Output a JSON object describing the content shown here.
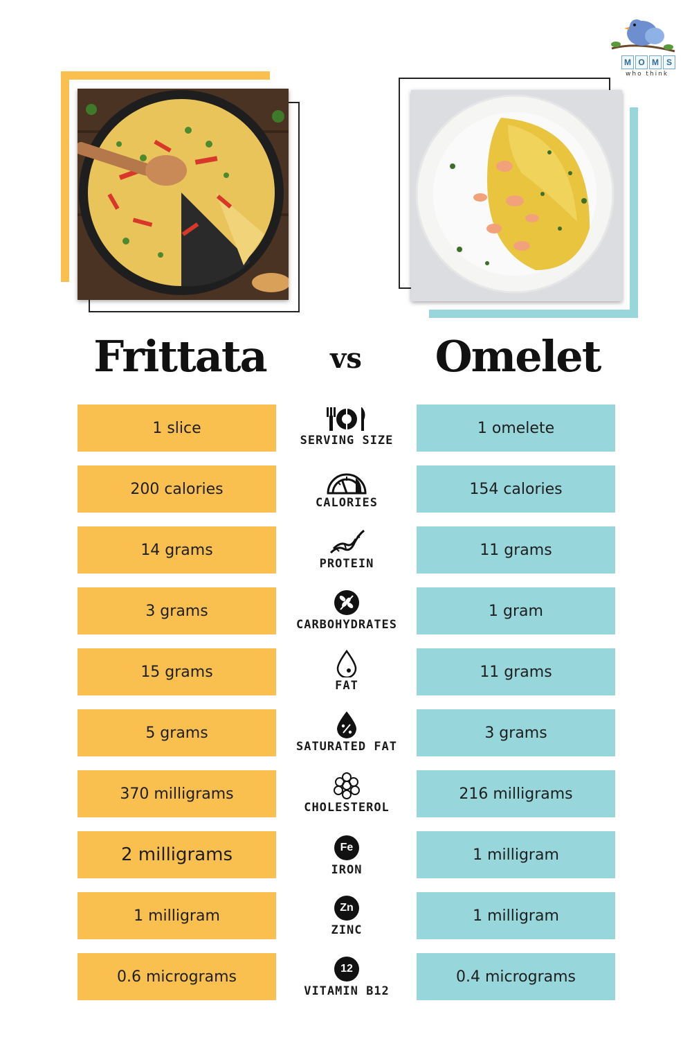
{
  "logo": {
    "letters": [
      "M",
      "O",
      "M",
      "S"
    ],
    "sub": "who think"
  },
  "titles": {
    "left": "Frittata",
    "vs": "vs",
    "right": "Omelet"
  },
  "rows": [
    {
      "label": "SERVING SIZE",
      "icon": "utensils-plate-icon",
      "left": "1 slice",
      "right": "1 omelete"
    },
    {
      "label": "CALORIES",
      "icon": "gauge-icon",
      "left": "200 calories",
      "right": "154 calories"
    },
    {
      "label": "PROTEIN",
      "icon": "protein-helix-icon",
      "left": "14 grams",
      "right": "11 grams"
    },
    {
      "label": "CARBOHYDRATES",
      "icon": "wheat-icon",
      "left": "3 grams",
      "right": "1 gram"
    },
    {
      "label": "FAT",
      "icon": "drop-icon",
      "left": "15 grams",
      "right": "11 grams"
    },
    {
      "label": "SATURATED FAT",
      "icon": "percent-drop-icon",
      "left": "5 grams",
      "right": "3 grams"
    },
    {
      "label": "CHOLESTEROL",
      "icon": "molecule-cluster-icon",
      "left": "370 milligrams",
      "right": "216 milligrams"
    },
    {
      "label": "IRON",
      "icon": "iron-badge-icon",
      "badge": "Fe",
      "left": "2 milligrams",
      "right": "1 milligram"
    },
    {
      "label": "ZINC",
      "icon": "zinc-badge-icon",
      "badge": "Zn",
      "left": "1 milligram",
      "right": "1 milligram"
    },
    {
      "label": "VITAMIN B12",
      "icon": "b12-badge-icon",
      "badge": "12",
      "left": "0.6 micrograms",
      "right": "0.4 micrograms"
    }
  ],
  "colors": {
    "frittata": "#f9bf4f",
    "omelet": "#97d6db"
  }
}
